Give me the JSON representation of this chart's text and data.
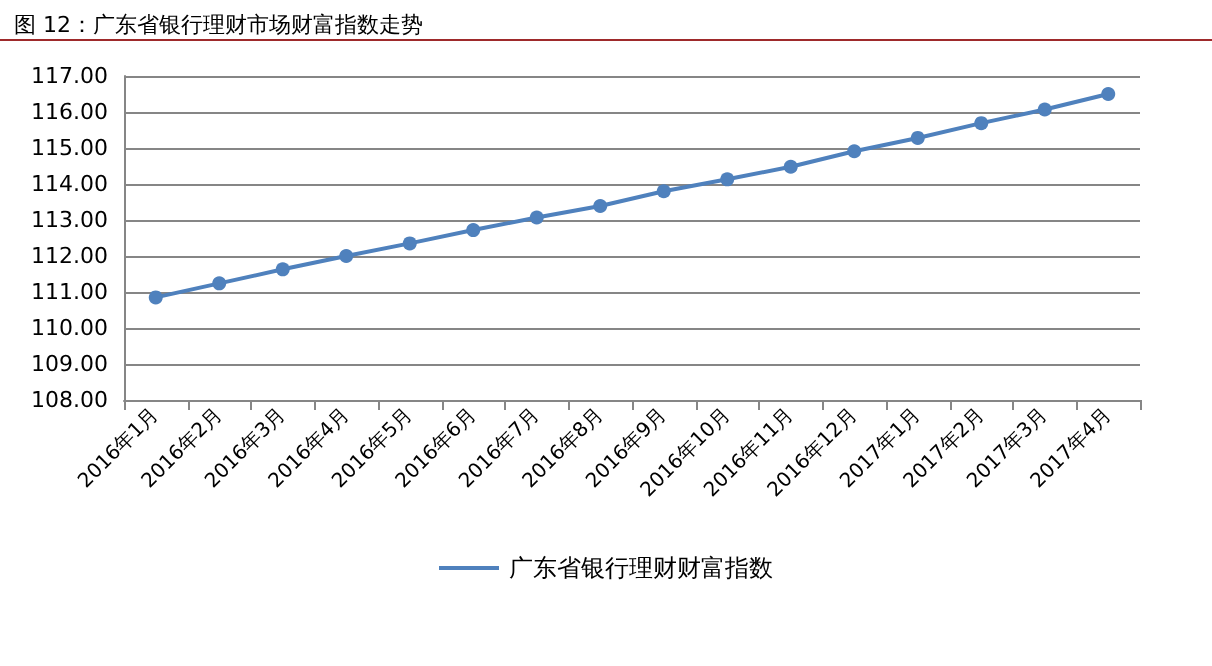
{
  "chart_data": {
    "type": "line",
    "title": "图 12：广东省银行理财市场财富指数走势",
    "categories": [
      "2016年1月",
      "2016年2月",
      "2016年3月",
      "2016年4月",
      "2016年5月",
      "2016年6月",
      "2016年7月",
      "2016年8月",
      "2016年9月",
      "2016年10月",
      "2016年11月",
      "2016年12月",
      "2017年1月",
      "2017年2月",
      "2017年3月",
      "2017年4月"
    ],
    "series": [
      {
        "name": "广东省银行理财财富指数",
        "color": "#4f81bd",
        "values": [
          110.85,
          111.24,
          111.63,
          112.0,
          112.35,
          112.72,
          113.07,
          113.39,
          113.8,
          114.13,
          114.48,
          114.91,
          115.28,
          115.69,
          116.07,
          116.5
        ]
      }
    ],
    "ylim": [
      108,
      117
    ],
    "yticks": [
      {
        "value": 108,
        "label": "108.00"
      },
      {
        "value": 109,
        "label": "109.00"
      },
      {
        "value": 110,
        "label": "110.00"
      },
      {
        "value": 111,
        "label": "111.00"
      },
      {
        "value": 112,
        "label": "112.00"
      },
      {
        "value": 113,
        "label": "113.00"
      },
      {
        "value": 114,
        "label": "114.00"
      },
      {
        "value": 115,
        "label": "115.00"
      },
      {
        "value": 116,
        "label": "116.00"
      },
      {
        "value": 117,
        "label": "117.00"
      }
    ],
    "grid": "y",
    "legend": "bottom",
    "marker": "circle",
    "line_style": "solid"
  }
}
